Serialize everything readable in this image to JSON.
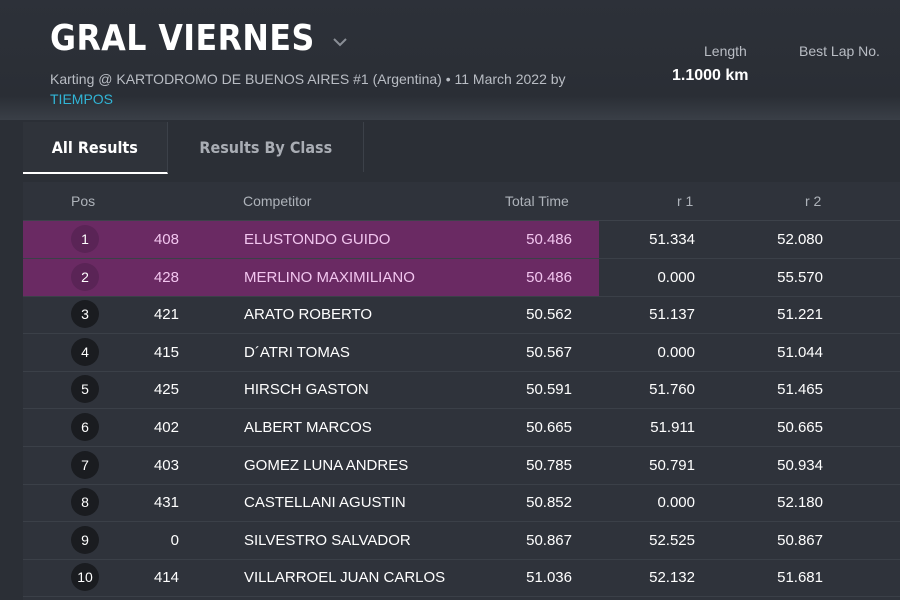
{
  "header": {
    "title": "GRAL VIERNES",
    "subtitle": "Karting @ KARTODROMO DE BUENOS AIRES #1 (Argentina) • 11 March 2022 by",
    "subtitle_link": "TIEMPOS",
    "stats": [
      {
        "label": "Length",
        "value": "1.1000 km"
      },
      {
        "label": "Best Lap No.",
        "value": ""
      }
    ]
  },
  "tabs": [
    {
      "label": "All Results",
      "active": true
    },
    {
      "label": "Results By Class",
      "active": false
    }
  ],
  "table": {
    "columns": {
      "pos": "Pos",
      "competitor": "Competitor",
      "total_time": "Total Time",
      "r1": "r 1",
      "r2": "r 2"
    },
    "rows": [
      {
        "pos": "1",
        "no": "408",
        "name": "ELUSTONDO GUIDO",
        "total": "50.486",
        "r1": "51.334",
        "r2": "52.080",
        "highlight": true
      },
      {
        "pos": "2",
        "no": "428",
        "name": "MERLINO MAXIMILIANO",
        "total": "50.486",
        "r1": "0.000",
        "r2": "55.570",
        "highlight": true
      },
      {
        "pos": "3",
        "no": "421",
        "name": "ARATO ROBERTO",
        "total": "50.562",
        "r1": "51.137",
        "r2": "51.221",
        "highlight": false
      },
      {
        "pos": "4",
        "no": "415",
        "name": "D´ATRI TOMAS",
        "total": "50.567",
        "r1": "0.000",
        "r2": "51.044",
        "highlight": false
      },
      {
        "pos": "5",
        "no": "425",
        "name": "HIRSCH GASTON",
        "total": "50.591",
        "r1": "51.760",
        "r2": "51.465",
        "highlight": false
      },
      {
        "pos": "6",
        "no": "402",
        "name": "ALBERT MARCOS",
        "total": "50.665",
        "r1": "51.911",
        "r2": "50.665",
        "highlight": false
      },
      {
        "pos": "7",
        "no": "403",
        "name": "GOMEZ LUNA ANDRES",
        "total": "50.785",
        "r1": "50.791",
        "r2": "50.934",
        "highlight": false
      },
      {
        "pos": "8",
        "no": "431",
        "name": "CASTELLANI AGUSTIN",
        "total": "50.852",
        "r1": "0.000",
        "r2": "52.180",
        "highlight": false
      },
      {
        "pos": "9",
        "no": "0",
        "name": "SILVESTRO SALVADOR",
        "total": "50.867",
        "r1": "52.525",
        "r2": "50.867",
        "highlight": false
      },
      {
        "pos": "10",
        "no": "414",
        "name": "VILLARROEL JUAN CARLOS",
        "total": "51.036",
        "r1": "52.132",
        "r2": "51.681",
        "highlight": false
      }
    ]
  },
  "icons": {
    "title_dropdown": "chevron-down-icon"
  },
  "colors": {
    "highlight": "#6a2a63",
    "link": "#31b5d6",
    "background": "#2b2f36"
  }
}
